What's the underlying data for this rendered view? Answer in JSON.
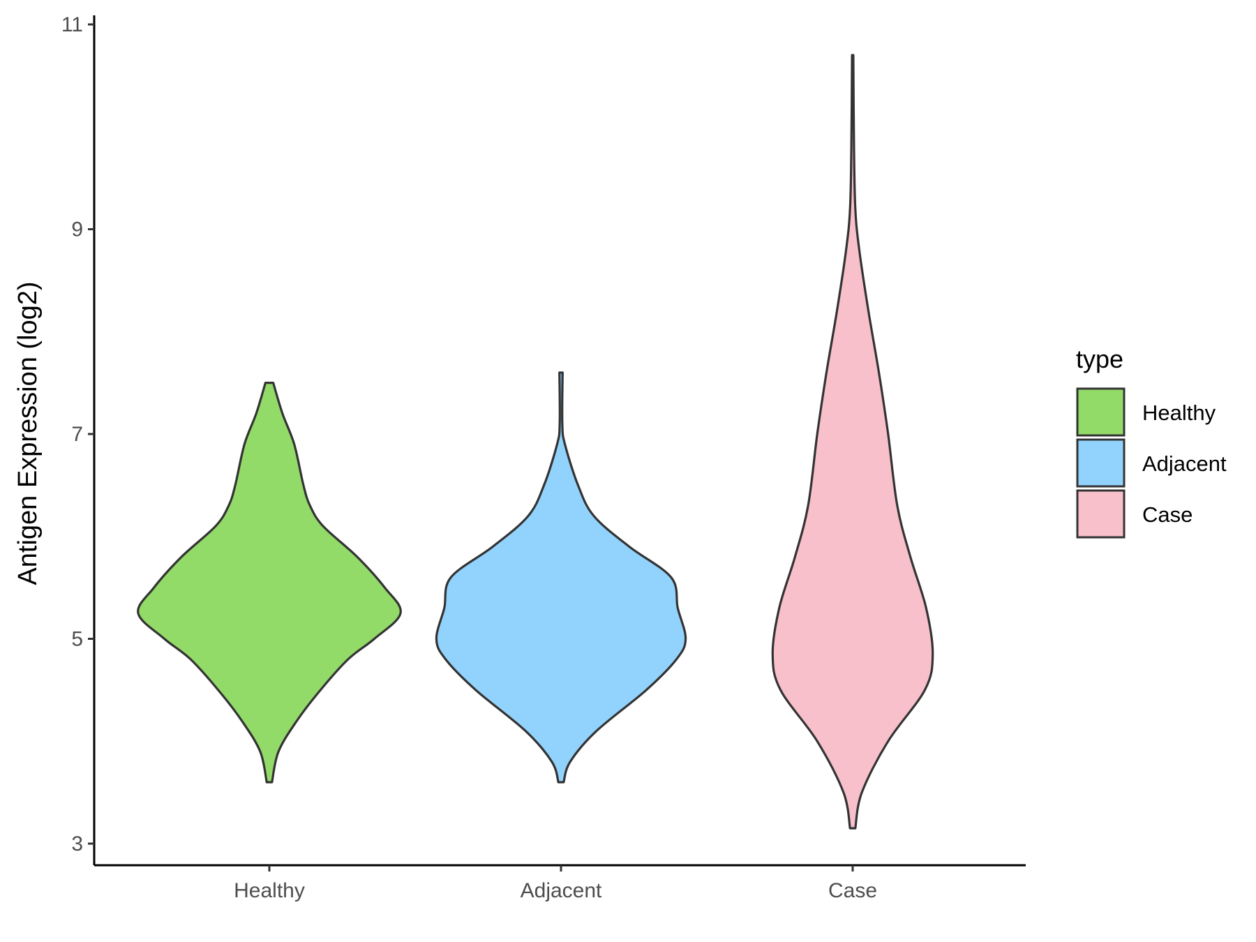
{
  "chart_data": {
    "type": "violin",
    "title": "",
    "xlabel": "",
    "ylabel": "Antigen Expression (log2)",
    "ylim": [
      2.8,
      11.1
    ],
    "yticks": [
      3,
      5,
      7,
      9,
      11
    ],
    "categories": [
      "Healthy",
      "Adjacent",
      "Case"
    ],
    "legend": {
      "title": "type",
      "position": "right",
      "entries": [
        "Healthy",
        "Adjacent",
        "Case"
      ]
    },
    "colors": {
      "Healthy": "#93db69",
      "Adjacent": "#92d3fd",
      "Case": "#f8c0cb",
      "outline": "#333333"
    },
    "series": [
      {
        "category": "Healthy",
        "min": 3.6,
        "max": 7.5,
        "density": [
          [
            3.6,
            0.02
          ],
          [
            3.9,
            0.07
          ],
          [
            4.2,
            0.21
          ],
          [
            4.5,
            0.39
          ],
          [
            4.8,
            0.6
          ],
          [
            5.0,
            0.8
          ],
          [
            5.25,
            1.0
          ],
          [
            5.5,
            0.88
          ],
          [
            5.8,
            0.67
          ],
          [
            6.1,
            0.41
          ],
          [
            6.3,
            0.31
          ],
          [
            6.5,
            0.26
          ],
          [
            6.9,
            0.19
          ],
          [
            7.2,
            0.1
          ],
          [
            7.5,
            0.03
          ]
        ]
      },
      {
        "category": "Adjacent",
        "min": 3.6,
        "max": 7.6,
        "density": [
          [
            3.6,
            0.02
          ],
          [
            3.8,
            0.07
          ],
          [
            4.1,
            0.27
          ],
          [
            4.5,
            0.65
          ],
          [
            4.8,
            0.88
          ],
          [
            5.0,
            0.95
          ],
          [
            5.3,
            0.89
          ],
          [
            5.6,
            0.84
          ],
          [
            5.9,
            0.52
          ],
          [
            6.2,
            0.25
          ],
          [
            6.5,
            0.13
          ],
          [
            6.9,
            0.03
          ],
          [
            7.1,
            0.01
          ],
          [
            7.6,
            0.012
          ]
        ]
      },
      {
        "category": "Case",
        "min": 3.15,
        "max": 10.7,
        "density": [
          [
            3.15,
            0.02
          ],
          [
            3.5,
            0.07
          ],
          [
            4.0,
            0.27
          ],
          [
            4.5,
            0.55
          ],
          [
            4.85,
            0.61
          ],
          [
            5.3,
            0.56
          ],
          [
            5.8,
            0.44
          ],
          [
            6.3,
            0.34
          ],
          [
            7.0,
            0.27
          ],
          [
            7.6,
            0.2
          ],
          [
            8.2,
            0.12
          ],
          [
            8.8,
            0.05
          ],
          [
            9.2,
            0.02
          ],
          [
            9.8,
            0.01
          ],
          [
            10.7,
            0.005
          ]
        ]
      }
    ]
  }
}
